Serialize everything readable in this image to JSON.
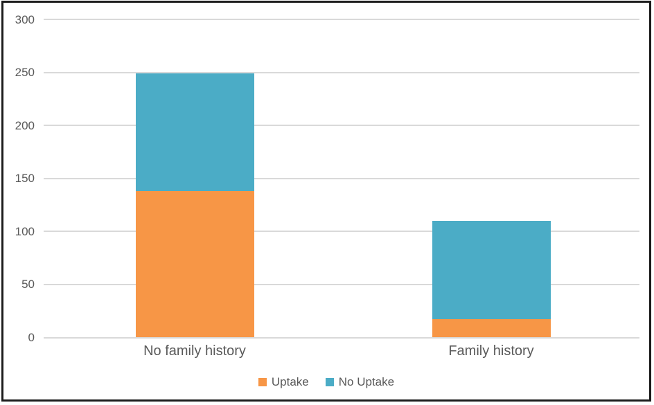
{
  "chart_data": {
    "type": "bar",
    "stacked": true,
    "title": "",
    "xlabel": "",
    "ylabel": "",
    "categories": [
      "No family history",
      "Family history"
    ],
    "series": [
      {
        "name": "Uptake",
        "color": "#F79646",
        "values": [
          138,
          17
        ]
      },
      {
        "name": "No Uptake",
        "color": "#4BACC6",
        "values": [
          111,
          93
        ]
      }
    ],
    "totals": [
      249,
      110
    ],
    "ylim": [
      0,
      300
    ],
    "yticks": [
      0,
      50,
      100,
      150,
      200,
      250,
      300
    ],
    "grid": true,
    "legend_position": "bottom"
  },
  "colors": {
    "background": "#ffffff",
    "frame_border": "#1c1c1c",
    "gridline": "#d9d9d9",
    "axis_text": "#595959",
    "uptake": "#F79646",
    "no_uptake": "#4BACC6"
  }
}
